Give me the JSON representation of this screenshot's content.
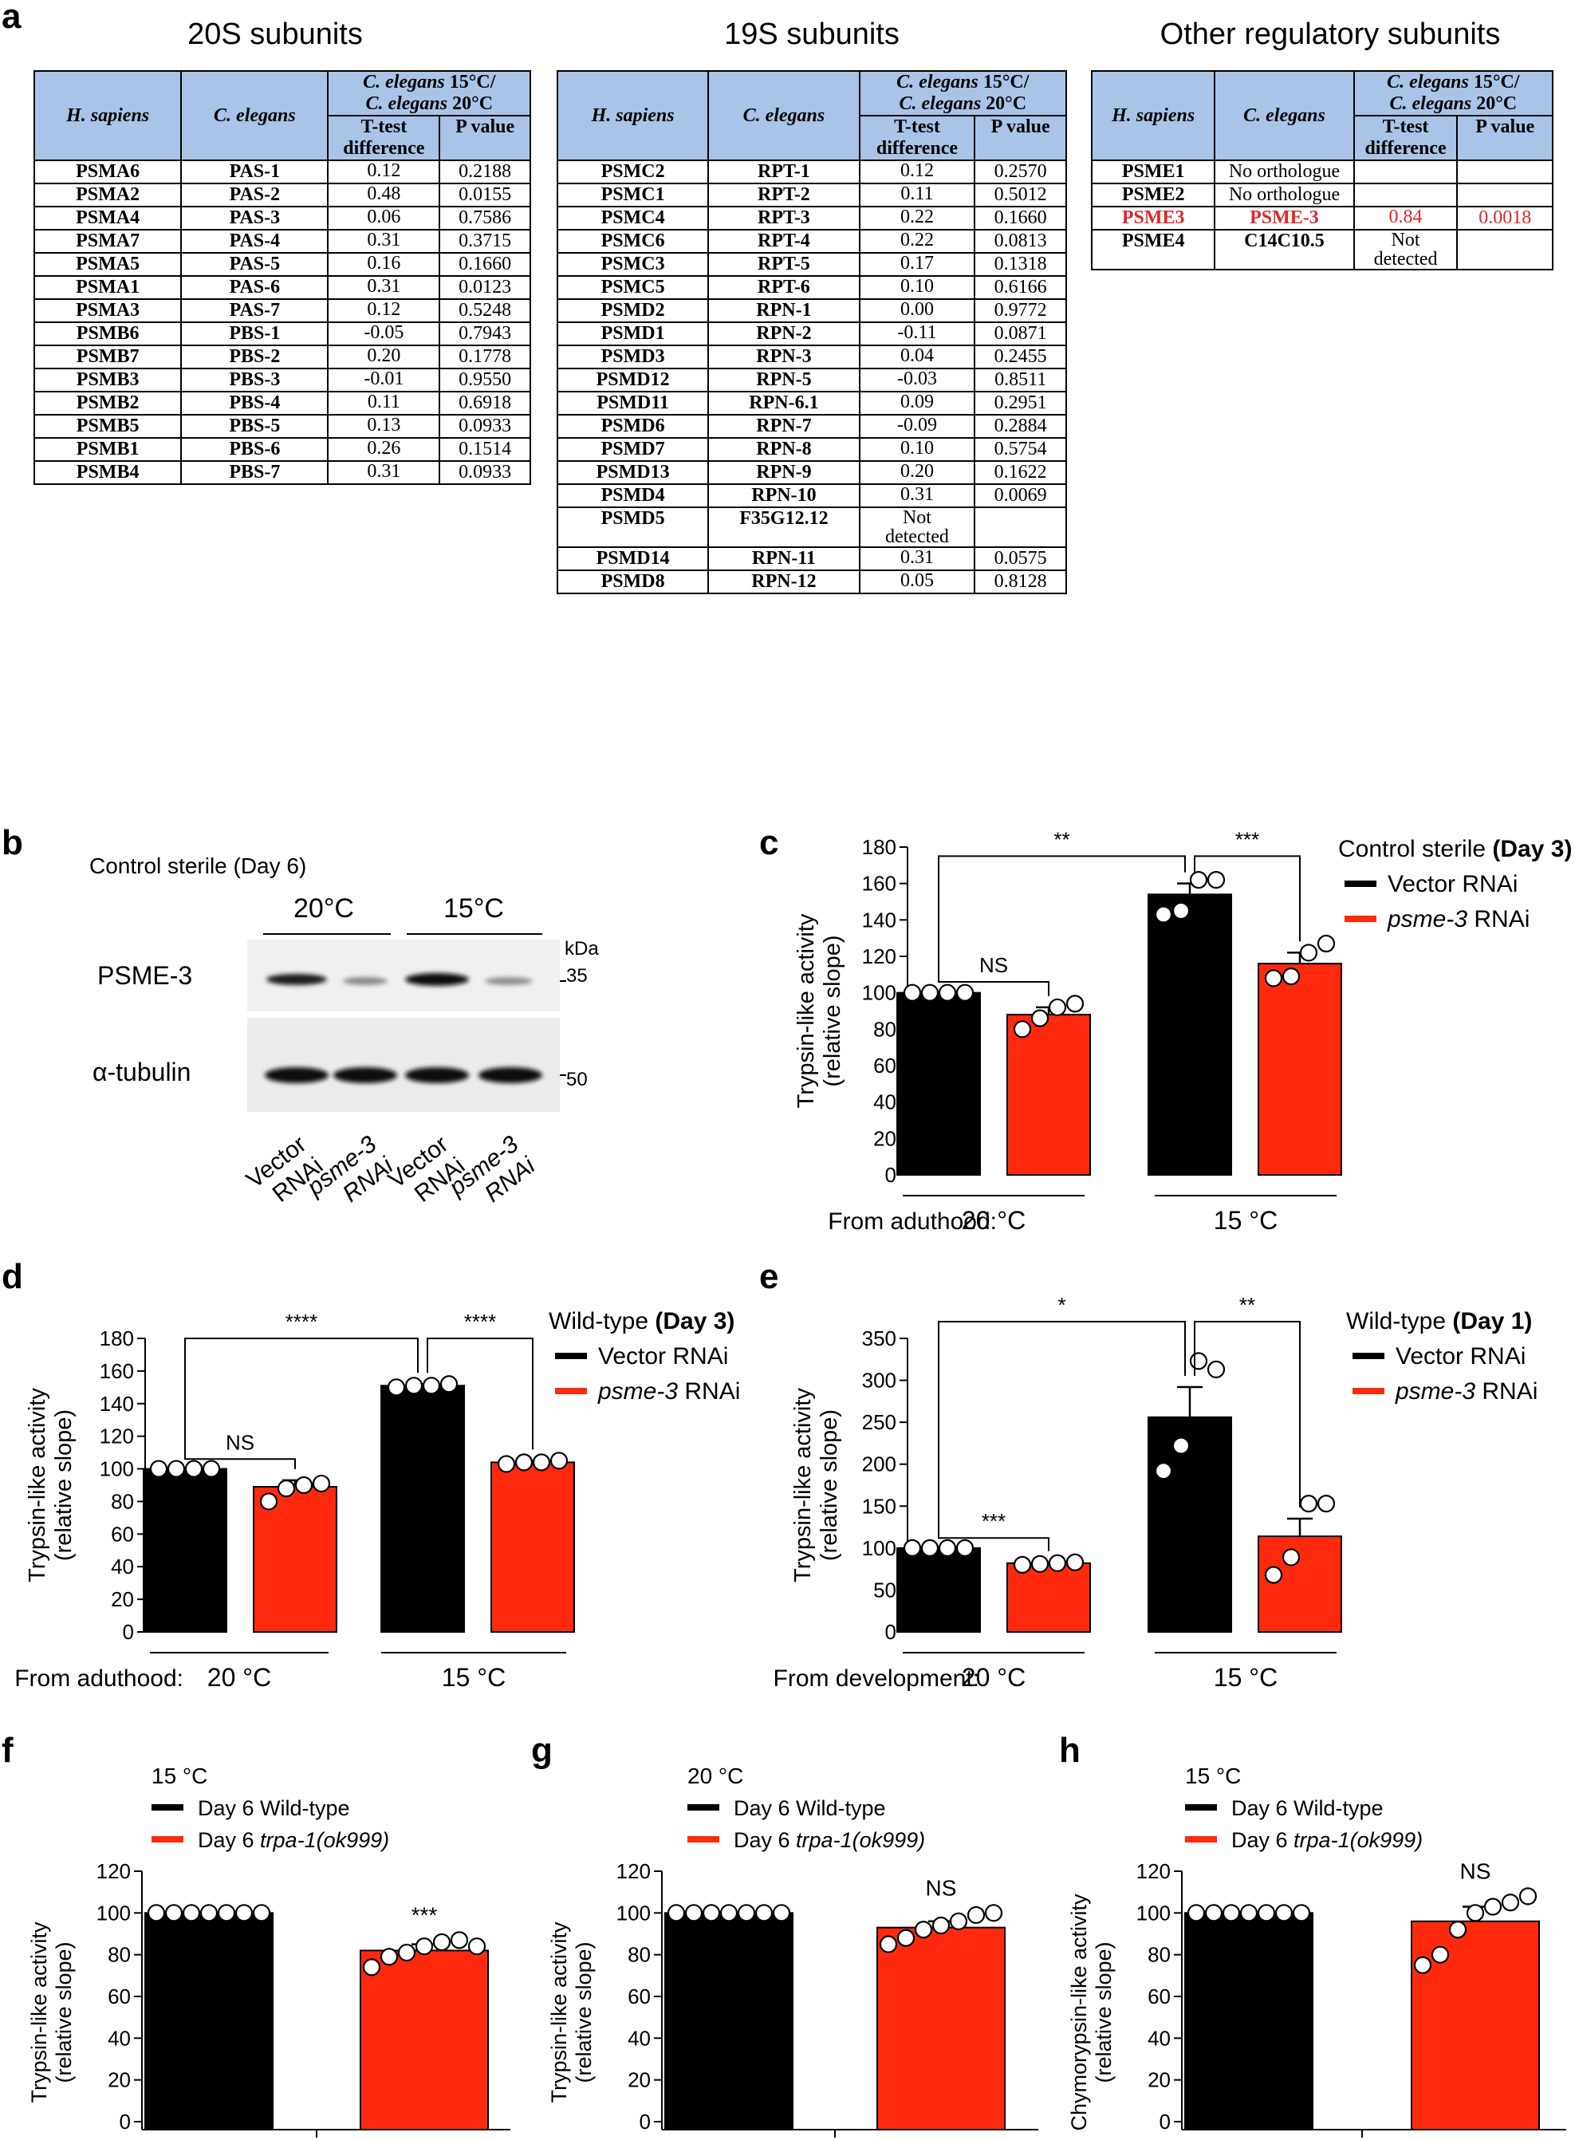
{
  "panel_a": {
    "letter": "a",
    "header_hs": "H. sapiens",
    "header_ce": "C. elegans",
    "header_ratio_line1": "C. elegans 15°C/",
    "header_ratio_line2": "C. elegans 20°C",
    "header_ttest_line1": "T-test",
    "header_ttest_line2": "difference",
    "header_pvalue": "P value",
    "tables": [
      {
        "title": "20S subunits",
        "rows": [
          [
            "PSMA6",
            "PAS-1",
            "0.12",
            "0.2188"
          ],
          [
            "PSMA2",
            "PAS-2",
            "0.48",
            "0.0155"
          ],
          [
            "PSMA4",
            "PAS-3",
            "0.06",
            "0.7586"
          ],
          [
            "PSMA7",
            "PAS-4",
            "0.31",
            "0.3715"
          ],
          [
            "PSMA5",
            "PAS-5",
            "0.16",
            "0.1660"
          ],
          [
            "PSMA1",
            "PAS-6",
            "0.31",
            "0.0123"
          ],
          [
            "PSMA3",
            "PAS-7",
            "0.12",
            "0.5248"
          ],
          [
            "PSMB6",
            "PBS-1",
            "-0.05",
            "0.7943"
          ],
          [
            "PSMB7",
            "PBS-2",
            "0.20",
            "0.1778"
          ],
          [
            "PSMB3",
            "PBS-3",
            "-0.01",
            "0.9550"
          ],
          [
            "PSMB2",
            "PBS-4",
            "0.11",
            "0.6918"
          ],
          [
            "PSMB5",
            "PBS-5",
            "0.13",
            "0.0933"
          ],
          [
            "PSMB1",
            "PBS-6",
            "0.26",
            "0.1514"
          ],
          [
            "PSMB4",
            "PBS-7",
            "0.31",
            "0.0933"
          ]
        ]
      },
      {
        "title": "19S subunits",
        "rows": [
          [
            "PSMC2",
            "RPT-1",
            "0.12",
            "0.2570"
          ],
          [
            "PSMC1",
            "RPT-2",
            "0.11",
            "0.5012"
          ],
          [
            "PSMC4",
            "RPT-3",
            "0.22",
            "0.1660"
          ],
          [
            "PSMC6",
            "RPT-4",
            "0.22",
            "0.0813"
          ],
          [
            "PSMC3",
            "RPT-5",
            "0.17",
            "0.1318"
          ],
          [
            "PSMC5",
            "RPT-6",
            "0.10",
            "0.6166"
          ],
          [
            "PSMD2",
            "RPN-1",
            "0.00",
            "0.9772"
          ],
          [
            "PSMD1",
            "RPN-2",
            "-0.11",
            "0.0871"
          ],
          [
            "PSMD3",
            "RPN-3",
            "0.04",
            "0.2455"
          ],
          [
            "PSMD12",
            "RPN-5",
            "-0.03",
            "0.8511"
          ],
          [
            "PSMD11",
            "RPN-6.1",
            "0.09",
            "0.2951"
          ],
          [
            "PSMD6",
            "RPN-7",
            "-0.09",
            "0.2884"
          ],
          [
            "PSMD7",
            "RPN-8",
            "0.10",
            "0.5754"
          ],
          [
            "PSMD13",
            "RPN-9",
            "0.20",
            "0.1622"
          ],
          [
            "PSMD4",
            "RPN-10",
            "0.31",
            "0.0069"
          ],
          [
            "PSMD5",
            "F35G12.12",
            "Not detected",
            ""
          ],
          [
            "PSMD14",
            "RPN-11",
            "0.31",
            "0.0575"
          ],
          [
            "PSMD8",
            "RPN-12",
            "0.05",
            "0.8128"
          ]
        ]
      },
      {
        "title": "Other regulatory subunits",
        "rows": [
          [
            "PSME1",
            "No orthologue",
            "",
            ""
          ],
          [
            "PSME2",
            "No orthologue",
            "",
            ""
          ],
          [
            "PSME3",
            "PSME-3",
            "0.84",
            "0.0018"
          ],
          [
            "PSME4",
            "C14C10.5",
            "Not detected",
            ""
          ]
        ]
      }
    ]
  },
  "panel_b": {
    "letter": "b",
    "title": "Control sterile (Day 6)",
    "temp_left": "20°C",
    "temp_right": "15°C",
    "kda": "kDa",
    "marker_35": "35",
    "marker_50": "50",
    "row1_label": "PSME-3",
    "row2_label": "α-tubulin",
    "lanes": [
      "Vector RNAi",
      "psme-3 RNAi",
      "Vector RNAi",
      "psme-3 RNAi"
    ]
  },
  "chart_data": [
    {
      "id": "c",
      "type": "bar",
      "ylabel_line1": "Trypsin-like activity",
      "ylabel_line2": "(relative slope)",
      "ylim": [
        0,
        180
      ],
      "yticks": [
        0,
        20,
        40,
        60,
        80,
        100,
        120,
        140,
        160,
        180
      ],
      "group_prefix": "From aduthood:",
      "groups": [
        "20 °C",
        "15 °C"
      ],
      "legend_title": "Control sterile",
      "legend_title_bold": "(Day 3)",
      "series": [
        {
          "name": "Vector RNAi",
          "italic_part": "",
          "color": "#000000"
        },
        {
          "name": "psme-3",
          "suffix": " RNAi",
          "italic": true,
          "color": "#ff2a0e"
        }
      ],
      "bars": [
        {
          "value": 100,
          "err": 0,
          "series": 0,
          "points": [
            100,
            100,
            100,
            100
          ]
        },
        {
          "value": 88,
          "err": 4,
          "series": 1,
          "points": [
            80,
            86,
            92,
            94
          ]
        },
        {
          "value": 154,
          "err": 6,
          "series": 0,
          "points": [
            143,
            145,
            162,
            162
          ]
        },
        {
          "value": 116,
          "err": 6,
          "series": 1,
          "points": [
            108,
            109,
            122,
            127
          ]
        }
      ],
      "brackets": [
        {
          "from": 0,
          "to": 1,
          "label": "NS",
          "y": 106
        },
        {
          "from": 0,
          "to": 2,
          "label": "**",
          "y": 175
        },
        {
          "from": 2,
          "to": 3,
          "label": "***",
          "y": 175
        }
      ]
    },
    {
      "id": "d",
      "type": "bar",
      "ylabel_line1": "Trypsin-like activity",
      "ylabel_line2": "(relative slope)",
      "ylim": [
        0,
        180
      ],
      "yticks": [
        0,
        20,
        40,
        60,
        80,
        100,
        120,
        140,
        160,
        180
      ],
      "group_prefix": "From aduthood:",
      "groups": [
        "20 °C",
        "15 °C"
      ],
      "legend_title": "Wild-type",
      "legend_title_bold": "(Day 3)",
      "series": [
        {
          "name": "Vector RNAi",
          "color": "#000000"
        },
        {
          "name": "psme-3",
          "suffix": " RNAi",
          "italic": true,
          "color": "#ff2a0e"
        }
      ],
      "bars": [
        {
          "value": 100,
          "err": 0,
          "series": 0,
          "points": [
            100,
            100,
            100,
            100
          ]
        },
        {
          "value": 89,
          "err": 4,
          "series": 1,
          "points": [
            80,
            88,
            90,
            91
          ]
        },
        {
          "value": 151,
          "err": 1,
          "series": 0,
          "points": [
            150,
            151,
            151,
            152
          ]
        },
        {
          "value": 104,
          "err": 1,
          "series": 1,
          "points": [
            103,
            104,
            104,
            105
          ]
        }
      ],
      "brackets": [
        {
          "from": 0,
          "to": 1,
          "label": "NS",
          "y": 106
        },
        {
          "from": 0,
          "to": 2,
          "label": "****",
          "y": 180
        },
        {
          "from": 2,
          "to": 3,
          "label": "****",
          "y": 180
        }
      ]
    },
    {
      "id": "e",
      "type": "bar",
      "ylabel_line1": "Trypsin-like activity",
      "ylabel_line2": "(relative slope)",
      "ylim": [
        0,
        350
      ],
      "yticks": [
        0,
        50,
        100,
        150,
        200,
        250,
        300,
        350
      ],
      "group_prefix": "From development:",
      "groups": [
        "20 °C",
        "15 °C"
      ],
      "legend_title": "Wild-type",
      "legend_title_bold": "(Day 1)",
      "series": [
        {
          "name": "Vector RNAi",
          "color": "#000000"
        },
        {
          "name": "psme-3",
          "suffix": " RNAi",
          "italic": true,
          "color": "#ff2a0e"
        }
      ],
      "bars": [
        {
          "value": 100,
          "err": 0,
          "series": 0,
          "points": [
            100,
            100,
            100,
            100
          ]
        },
        {
          "value": 82,
          "err": 1,
          "series": 1,
          "points": [
            80,
            81,
            82,
            83
          ]
        },
        {
          "value": 256,
          "err": 36,
          "series": 0,
          "points": [
            192,
            222,
            323,
            313
          ]
        },
        {
          "value": 114,
          "err": 21,
          "series": 1,
          "points": [
            68,
            89,
            153,
            153
          ]
        }
      ],
      "brackets": [
        {
          "from": 0,
          "to": 1,
          "label": "***",
          "y": 112
        },
        {
          "from": 0,
          "to": 2,
          "label": "*",
          "y": 370
        },
        {
          "from": 2,
          "to": 3,
          "label": "**",
          "y": 370
        }
      ]
    },
    {
      "id": "f",
      "type": "bar",
      "title": "15 °C",
      "ylabel_line1": "Trypsin-like activity",
      "ylabel_line2": "(relative slope)",
      "ylim": [
        0,
        120
      ],
      "yticks": [
        0,
        20,
        40,
        60,
        80,
        100,
        120
      ],
      "legend": [
        {
          "text": "Day 6 Wild-type",
          "color": "#000000"
        },
        {
          "text": "Day 6 ",
          "italic_text": "trpa-1(ok999)",
          "color": "#ff2a0e"
        }
      ],
      "bars": [
        {
          "value": 100,
          "err": 0,
          "color": "#000000",
          "points": [
            100,
            100,
            100,
            100,
            100,
            100,
            100
          ]
        },
        {
          "value": 82,
          "err": 3,
          "color": "#ff2a0e",
          "points": [
            74,
            79,
            81,
            84,
            86,
            87,
            84
          ]
        }
      ],
      "sig": "***"
    },
    {
      "id": "g",
      "type": "bar",
      "title": "20 °C",
      "ylabel_line1": "Trypsin-like activity",
      "ylabel_line2": "(relative slope)",
      "ylim": [
        0,
        120
      ],
      "yticks": [
        0,
        20,
        40,
        60,
        80,
        100,
        120
      ],
      "legend": [
        {
          "text": "Day 6 Wild-type",
          "color": "#000000"
        },
        {
          "text": "Day 6 ",
          "italic_text": "trpa-1(ok999)",
          "color": "#ff2a0e"
        }
      ],
      "bars": [
        {
          "value": 100,
          "err": 0,
          "color": "#000000",
          "points": [
            100,
            100,
            100,
            100,
            100,
            100,
            100
          ]
        },
        {
          "value": 93,
          "err": 3,
          "color": "#ff2a0e",
          "points": [
            85,
            88,
            92,
            94,
            96,
            99,
            100
          ]
        }
      ],
      "sig": "NS"
    },
    {
      "id": "h",
      "type": "bar",
      "title": "15 °C",
      "ylabel_line1": "Chymorypsin-like activity",
      "ylabel_line2": "(relative slope)",
      "ylim": [
        0,
        120
      ],
      "yticks": [
        0,
        20,
        40,
        60,
        80,
        100,
        120
      ],
      "legend": [
        {
          "text": "Day 6 Wild-type",
          "color": "#000000"
        },
        {
          "text": "Day 6 ",
          "italic_text": "trpa-1(ok999)",
          "color": "#ff2a0e"
        }
      ],
      "bars": [
        {
          "value": 100,
          "err": 0,
          "color": "#000000",
          "points": [
            100,
            100,
            100,
            100,
            100,
            100,
            100
          ]
        },
        {
          "value": 96,
          "err": 7,
          "color": "#ff2a0e",
          "points": [
            75,
            80,
            92,
            100,
            103,
            105,
            108
          ]
        }
      ],
      "sig": "NS"
    }
  ]
}
